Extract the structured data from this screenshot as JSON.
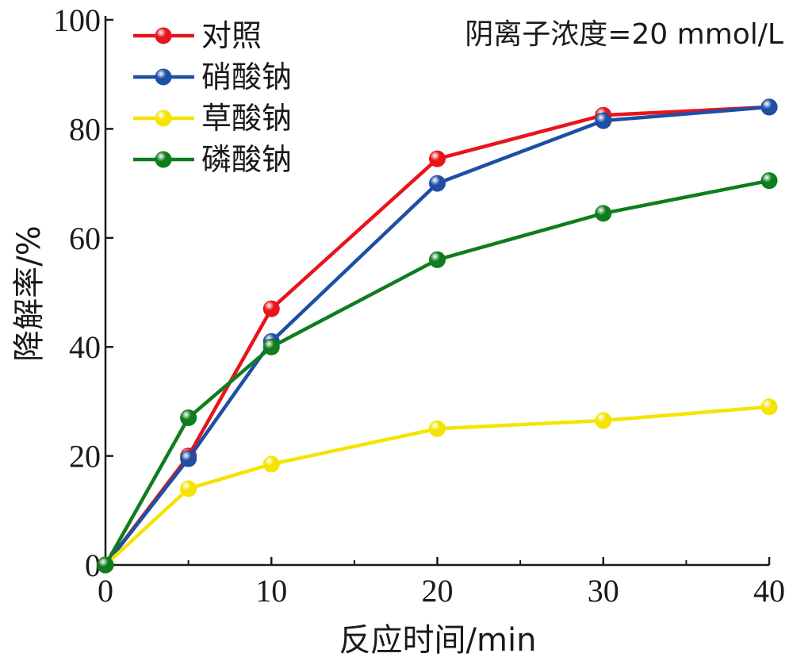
{
  "chart_data": {
    "type": "line",
    "title": "",
    "xlabel": "反应时间/min",
    "ylabel": "降解率/%",
    "annotation": "阴离子浓度=20 mmol/L",
    "xlim": [
      0,
      40
    ],
    "ylim": [
      0,
      100
    ],
    "x_ticks": [
      0,
      10,
      20,
      30,
      40
    ],
    "y_ticks": [
      0,
      20,
      40,
      60,
      80,
      100
    ],
    "x_tick_labels": [
      "0",
      "10",
      "20",
      "30",
      "40"
    ],
    "y_tick_labels": [
      "0",
      "20",
      "40",
      "60",
      "80",
      "100"
    ],
    "grid": false,
    "legend_position": "top-left",
    "x": [
      0,
      5,
      10,
      20,
      30,
      40
    ],
    "series": [
      {
        "name": "对照",
        "color": "#e8141c",
        "values": [
          0,
          20,
          47,
          74.5,
          82.5,
          84
        ]
      },
      {
        "name": "硝酸钠",
        "color": "#1e4fa3",
        "values": [
          0,
          19.5,
          41,
          70,
          81.5,
          84
        ]
      },
      {
        "name": "草酸钠",
        "color": "#f5e400",
        "values": [
          0,
          14,
          18.5,
          25,
          26.5,
          29
        ]
      },
      {
        "name": "磷酸钠",
        "color": "#0e7d1e",
        "values": [
          0,
          27,
          40,
          56,
          64.5,
          70.5
        ]
      }
    ]
  }
}
